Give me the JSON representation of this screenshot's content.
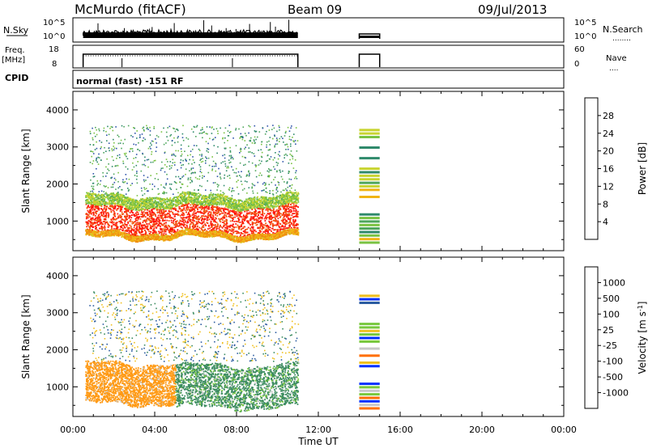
{
  "header": {
    "station": "McMurdo (fitACF)",
    "beam": "Beam 09",
    "date": "09/Jul/2013"
  },
  "small_panels": {
    "nsky_label": "N.Sky",
    "nsearch_label": "N.Search",
    "nsearch_dots": "........",
    "freq_label": "Freq.",
    "freq_unit": "[MHz]",
    "nave_label": "Nave",
    "nave_dots": "....",
    "cpid_label": "CPID",
    "cpid_text": "normal (fast) -151 RF",
    "noise_left_ticks": [
      "10^5",
      "10^0"
    ],
    "noise_right_ticks": [
      "10^5",
      "10^0"
    ],
    "freq_left_ticks": [
      "18",
      "8"
    ],
    "nave_right_ticks": [
      "60",
      "0"
    ]
  },
  "colors": {
    "power_scale": [
      "#0000ff",
      "#3055aa",
      "#2f8a6b",
      "#4ea65c",
      "#79c241",
      "#c8d431",
      "#f0b414",
      "#f08a10",
      "#f05a10",
      "#ff2010",
      "#ff0000"
    ],
    "velocity_scale": [
      "#ff0000",
      "#ff3c00",
      "#ff6e00",
      "#ff9a14",
      "#f0c020",
      "#c8c8c8",
      "#78c83c",
      "#3c8c60",
      "#2c5ca0",
      "#0030ff"
    ]
  },
  "chart_data": [
    {
      "type": "heatmap",
      "title": "",
      "ylabel": "Slant Range [km]",
      "xlabel": "",
      "xlim_hours": [
        0,
        24
      ],
      "ylim": [
        200,
        4500
      ],
      "yticks": [
        "1000",
        "2000",
        "3000",
        "4000"
      ],
      "colorbar": {
        "label": "Power [dB]",
        "range": [
          0,
          32
        ],
        "ticks": [
          "4",
          "8",
          "12",
          "16",
          "20",
          "24",
          "28"
        ]
      },
      "bands": [
        {
          "t0": 0.6,
          "t1": 11.0,
          "r0": 700,
          "r1": 1400,
          "value": 27
        },
        {
          "t0": 0.6,
          "t1": 11.0,
          "r0": 550,
          "r1": 700,
          "value": 20
        },
        {
          "t0": 0.6,
          "t1": 11.0,
          "r0": 1400,
          "r1": 1700,
          "value": 14
        }
      ],
      "scatter_band": {
        "t0": 0.8,
        "t1": 11.0,
        "r0": 1700,
        "r1": 3600,
        "value": 9
      },
      "gap_block": {
        "t0": 14.0,
        "t1": 15.0,
        "r0": 450,
        "r1": 3500
      }
    },
    {
      "type": "heatmap",
      "title": "",
      "ylabel": "Slant Range [km]",
      "xlabel": "Time UT",
      "xlim_hours": [
        0,
        24
      ],
      "ylim": [
        200,
        4500
      ],
      "yticks": [
        "1000",
        "2000",
        "3000",
        "4000"
      ],
      "xticks": [
        "00:00",
        "04:00",
        "08:00",
        "12:00",
        "16:00",
        "20:00",
        "00:00"
      ],
      "colorbar": {
        "label": "Velocity [m s^-1]",
        "ticks": [
          "-1000",
          "-500",
          "-100",
          "-25",
          "25",
          "100",
          "500",
          "1000"
        ]
      },
      "bands": [
        {
          "t0": 0.6,
          "t1": 5.0,
          "r0": 550,
          "r1": 1650,
          "value": -200
        },
        {
          "t0": 5.0,
          "t1": 11.0,
          "r0": 450,
          "r1": 1600,
          "value": 150
        }
      ],
      "scatter_band": {
        "t0": 0.8,
        "t1": 11.0,
        "r0": 1700,
        "r1": 3600,
        "value": 100
      },
      "gap_block": {
        "t0": 14.0,
        "t1": 15.0,
        "r0": 450,
        "r1": 3500
      }
    }
  ]
}
